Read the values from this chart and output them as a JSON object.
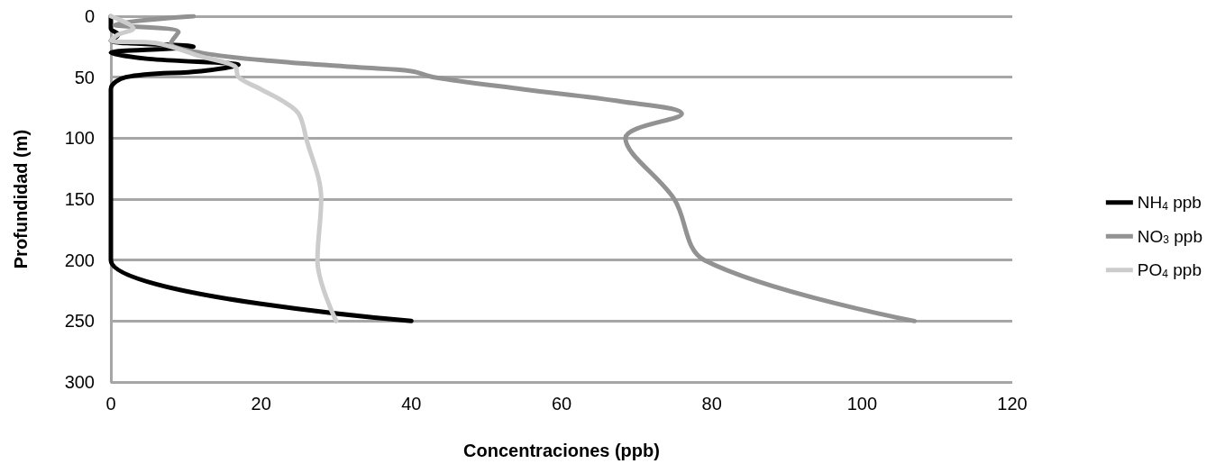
{
  "chart_data": {
    "type": "line",
    "xlabel": "Concentraciones (ppb)",
    "ylabel": "Profundidad (m)",
    "xlim": [
      0,
      120
    ],
    "xticks": [
      0,
      20,
      40,
      60,
      80,
      100,
      120
    ],
    "ylim": [
      300,
      0
    ],
    "yticks": [
      0,
      50,
      100,
      150,
      200,
      250,
      300
    ],
    "grid": "y",
    "legend": "right",
    "marker": "none",
    "line_style": "solid",
    "series": [
      {
        "name": "NH$_{4}$ ppb",
        "color": "#000000",
        "x": [
          0,
          0,
          1,
          0,
          11,
          0,
          5,
          17,
          12,
          2,
          0,
          0,
          0,
          0,
          40
        ],
        "values": [
          0,
          10,
          15,
          20,
          25,
          30,
          35,
          40,
          45,
          50,
          60,
          100,
          150,
          200,
          250
        ]
      },
      {
        "name": "NO$_{3}$ ppb",
        "color": "#929292",
        "x": [
          11,
          0.5,
          9,
          8,
          12,
          22,
          33,
          40,
          43,
          55,
          68,
          76,
          68.5,
          75,
          79,
          107
        ],
        "values": [
          0,
          7,
          13,
          22,
          30,
          37,
          42,
          45,
          50,
          60,
          70,
          80,
          100,
          150,
          200,
          250
        ]
      },
      {
        "name": "PO$_{4}$ ppb",
        "color": "#cccccc",
        "x": [
          0,
          3,
          1,
          0,
          6,
          12,
          16.5,
          17,
          20,
          23,
          25,
          26,
          28,
          27.5,
          30
        ],
        "values": [
          0,
          10,
          15,
          20,
          22,
          33,
          41,
          50,
          60,
          70,
          80,
          100,
          150,
          200,
          250
        ]
      }
    ]
  }
}
